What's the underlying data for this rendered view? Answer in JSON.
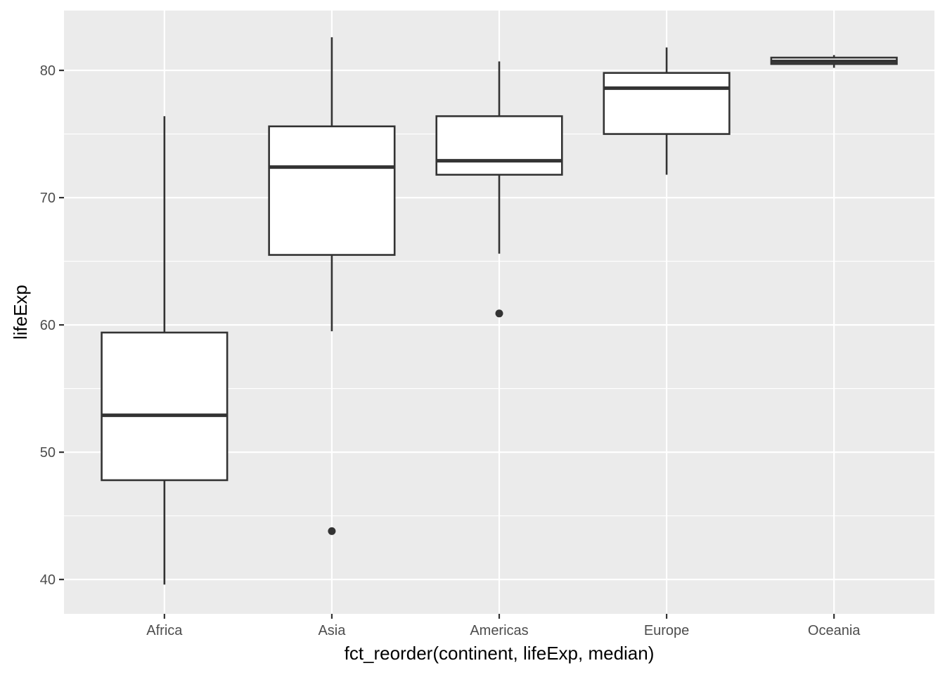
{
  "chart_data": {
    "type": "boxplot",
    "xlabel": "fct_reorder(continent, lifeExp, median)",
    "ylabel": "lifeExp",
    "ylim": [
      37.3,
      84.7
    ],
    "y_ticks": [
      40,
      50,
      60,
      70,
      80
    ],
    "grid": true,
    "categories": [
      "Africa",
      "Asia",
      "Americas",
      "Europe",
      "Oceania"
    ],
    "boxes": [
      {
        "category": "Africa",
        "whisker_low": 39.6,
        "q1": 47.8,
        "median": 52.9,
        "q3": 59.4,
        "whisker_high": 76.4,
        "outliers": []
      },
      {
        "category": "Asia",
        "whisker_low": 59.5,
        "q1": 65.5,
        "median": 72.4,
        "q3": 75.6,
        "whisker_high": 82.6,
        "outliers": [
          43.8
        ]
      },
      {
        "category": "Americas",
        "whisker_low": 65.6,
        "q1": 71.8,
        "median": 72.9,
        "q3": 76.4,
        "whisker_high": 80.7,
        "outliers": [
          60.9
        ]
      },
      {
        "category": "Europe",
        "whisker_low": 71.8,
        "q1": 75.0,
        "median": 78.6,
        "q3": 79.8,
        "whisker_high": 81.8,
        "outliers": []
      },
      {
        "category": "Oceania",
        "whisker_low": 80.2,
        "q1": 80.5,
        "median": 80.7,
        "q3": 81.0,
        "whisker_high": 81.2,
        "outliers": []
      }
    ],
    "colors": {
      "panel_background": "#ebebeb",
      "grid_major": "#ffffff",
      "box_fill": "#ffffff",
      "box_stroke": "#333333",
      "tick_text": "#4d4d4d",
      "tick_mark": "#333333"
    }
  }
}
